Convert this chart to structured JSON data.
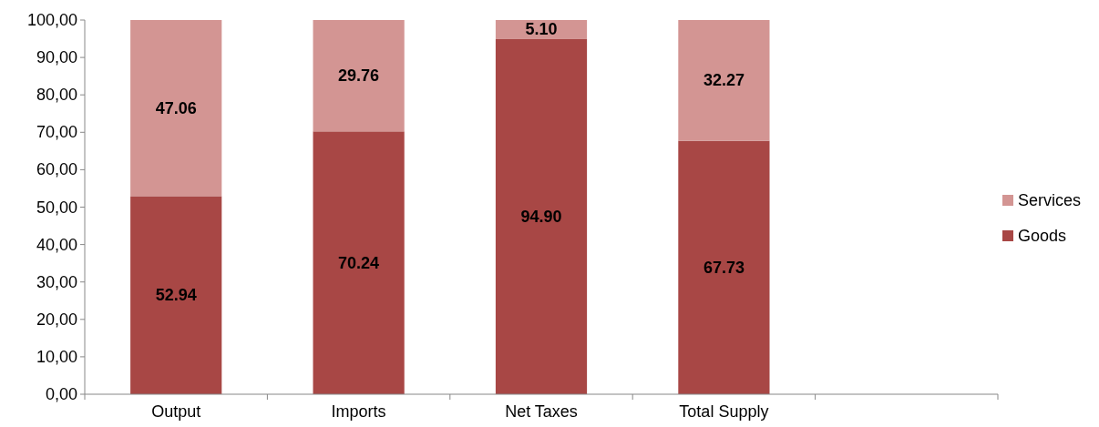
{
  "chart_data": {
    "type": "bar",
    "stacked": true,
    "categories": [
      "Output",
      "Imports",
      "Net Taxes",
      "Total Supply",
      null
    ],
    "series": [
      {
        "name": "Goods",
        "color": "#a84745",
        "values": [
          52.94,
          70.24,
          94.9,
          67.73,
          null
        ],
        "value_labels": [
          "52.94",
          "70.24",
          "94.90",
          "67.73",
          null
        ]
      },
      {
        "name": "Services",
        "color": "#d39593",
        "values": [
          47.06,
          29.76,
          5.1,
          32.27,
          null
        ],
        "value_labels": [
          "47.06",
          "29.76",
          "5.10",
          "32.27",
          null
        ]
      }
    ],
    "ylim": [
      0,
      100
    ],
    "yticks": [
      {
        "value": 0,
        "label": "0,00"
      },
      {
        "value": 10,
        "label": "10,00"
      },
      {
        "value": 20,
        "label": "20,00"
      },
      {
        "value": 30,
        "label": "30,00"
      },
      {
        "value": 40,
        "label": "40,00"
      },
      {
        "value": 50,
        "label": "50,00"
      },
      {
        "value": 60,
        "label": "60,00"
      },
      {
        "value": 70,
        "label": "70,00"
      },
      {
        "value": 80,
        "label": "80,00"
      },
      {
        "value": 90,
        "label": "90,00"
      },
      {
        "value": 100,
        "label": "100,00"
      }
    ],
    "grid": false,
    "legend": "right"
  }
}
